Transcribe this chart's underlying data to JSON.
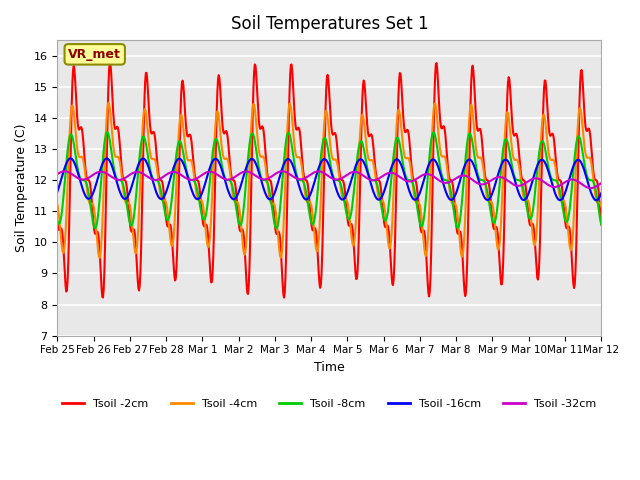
{
  "title": "Soil Temperatures Set 1",
  "xlabel": "Time",
  "ylabel": "Soil Temperature (C)",
  "ylim": [
    7.0,
    16.5
  ],
  "yticks": [
    7.0,
    8.0,
    9.0,
    10.0,
    11.0,
    12.0,
    13.0,
    14.0,
    15.0,
    16.0
  ],
  "background_color": "#ffffff",
  "plot_bg_color": "#e8e8e8",
  "grid_color": "#ffffff",
  "annotation_text": "VR_met",
  "annotation_box_color": "#ffff99",
  "annotation_border_color": "#8B8B00",
  "colors": {
    "Tsoil -2cm": "#ff0000",
    "Tsoil -4cm": "#ff8800",
    "Tsoil -8cm": "#00cc00",
    "Tsoil -16cm": "#0000ff",
    "Tsoil -32cm": "#cc00cc"
  },
  "line_width": 1.5
}
